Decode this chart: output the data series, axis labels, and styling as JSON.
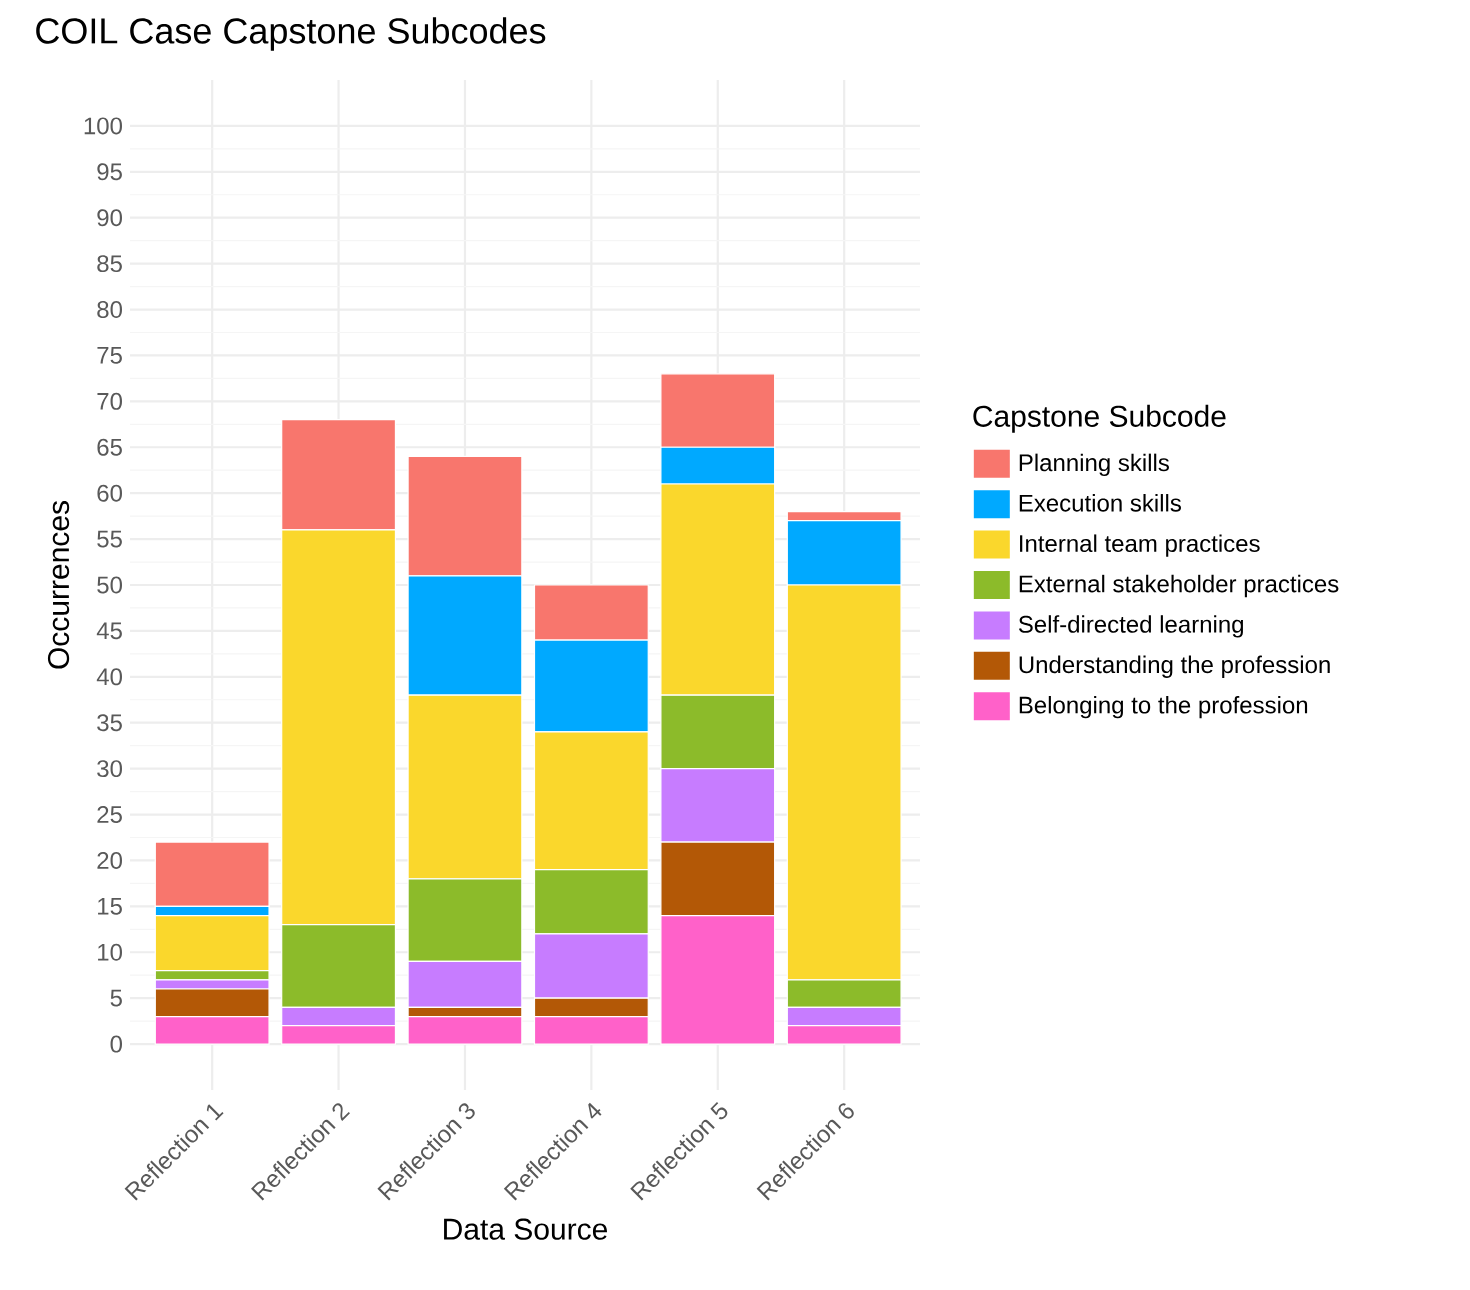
{
  "chart_data": {
    "type": "bar",
    "stacked": true,
    "title": "COIL Case Capstone Subcodes",
    "xlabel": "Data Source",
    "ylabel": "Occurrences",
    "legend_title": "Capstone Subcode",
    "categories": [
      "Reflection 1",
      "Reflection 2",
      "Reflection 3",
      "Reflection 4",
      "Reflection 5",
      "Reflection 6"
    ],
    "series": [
      {
        "name": "Belonging to the profession",
        "color": "#ff61c9",
        "values": [
          3,
          2,
          3,
          3,
          14,
          2
        ]
      },
      {
        "name": "Understanding the profession",
        "color": "#b35806",
        "values": [
          3,
          0,
          1,
          2,
          8,
          0
        ]
      },
      {
        "name": "Self-directed learning",
        "color": "#c77cff",
        "values": [
          1,
          2,
          5,
          7,
          8,
          2
        ]
      },
      {
        "name": "External stakeholder practices",
        "color": "#8cbb2a",
        "values": [
          1,
          9,
          9,
          7,
          8,
          3
        ]
      },
      {
        "name": "Internal team practices",
        "color": "#fad72c",
        "values": [
          6,
          43,
          20,
          15,
          23,
          43
        ]
      },
      {
        "name": "Execution skills",
        "color": "#00a9ff",
        "values": [
          1,
          0,
          13,
          10,
          4,
          7
        ]
      },
      {
        "name": "Planning skills",
        "color": "#f8766d",
        "values": [
          7,
          12,
          13,
          6,
          8,
          1
        ]
      }
    ],
    "ylim": [
      -5,
      105
    ],
    "yticks": [
      0,
      5,
      10,
      15,
      20,
      25,
      30,
      35,
      40,
      45,
      50,
      55,
      60,
      65,
      70,
      75,
      80,
      85,
      90,
      95,
      100
    ],
    "grid": true,
    "legend": "right"
  }
}
